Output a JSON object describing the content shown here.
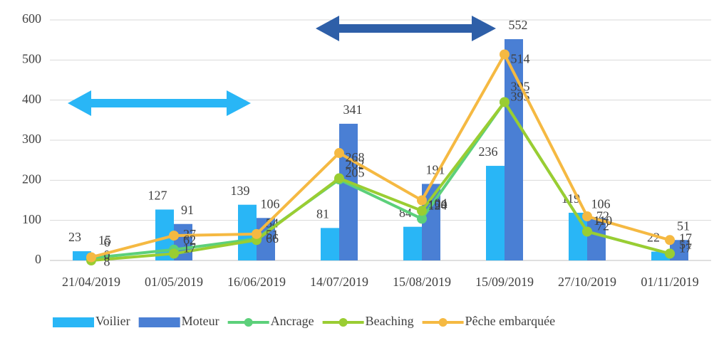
{
  "chart_data": {
    "type": "bar_line",
    "categories": [
      "21/04/2019",
      "01/05/2019",
      "16/06/2019",
      "14/07/2019",
      "15/08/2019",
      "15/09/2019",
      "27/10/2019",
      "01/11/2019"
    ],
    "series": [
      {
        "name": "Voilier",
        "color": "#29b6f6",
        "kind": "bar",
        "values": [
          23,
          127,
          139,
          81,
          84,
          236,
          119,
          22
        ]
      },
      {
        "name": "Moteur",
        "color": "#4a7fd4",
        "kind": "bar",
        "values": [
          15,
          91,
          106,
          341,
          191,
          552,
          106,
          51
        ]
      },
      {
        "name": "Ancrage",
        "color": "#5cd07a",
        "kind": "line",
        "values": [
          6,
          27,
          54,
          202,
          104,
          395,
          72,
          17
        ]
      },
      {
        "name": "Beaching",
        "color": "#9acd32",
        "kind": "line",
        "values": [
          0,
          17,
          51,
          205,
          124,
          395,
          72,
          17
        ]
      },
      {
        "name": "Pêche embarquée",
        "color": "#f5b942",
        "kind": "line",
        "values": [
          8,
          62,
          66,
          268,
          150,
          514,
          110,
          51
        ]
      }
    ],
    "ylim": [
      0,
      600
    ],
    "yticks": [
      0,
      100,
      200,
      300,
      400,
      500,
      600
    ],
    "grid": true
  }
}
